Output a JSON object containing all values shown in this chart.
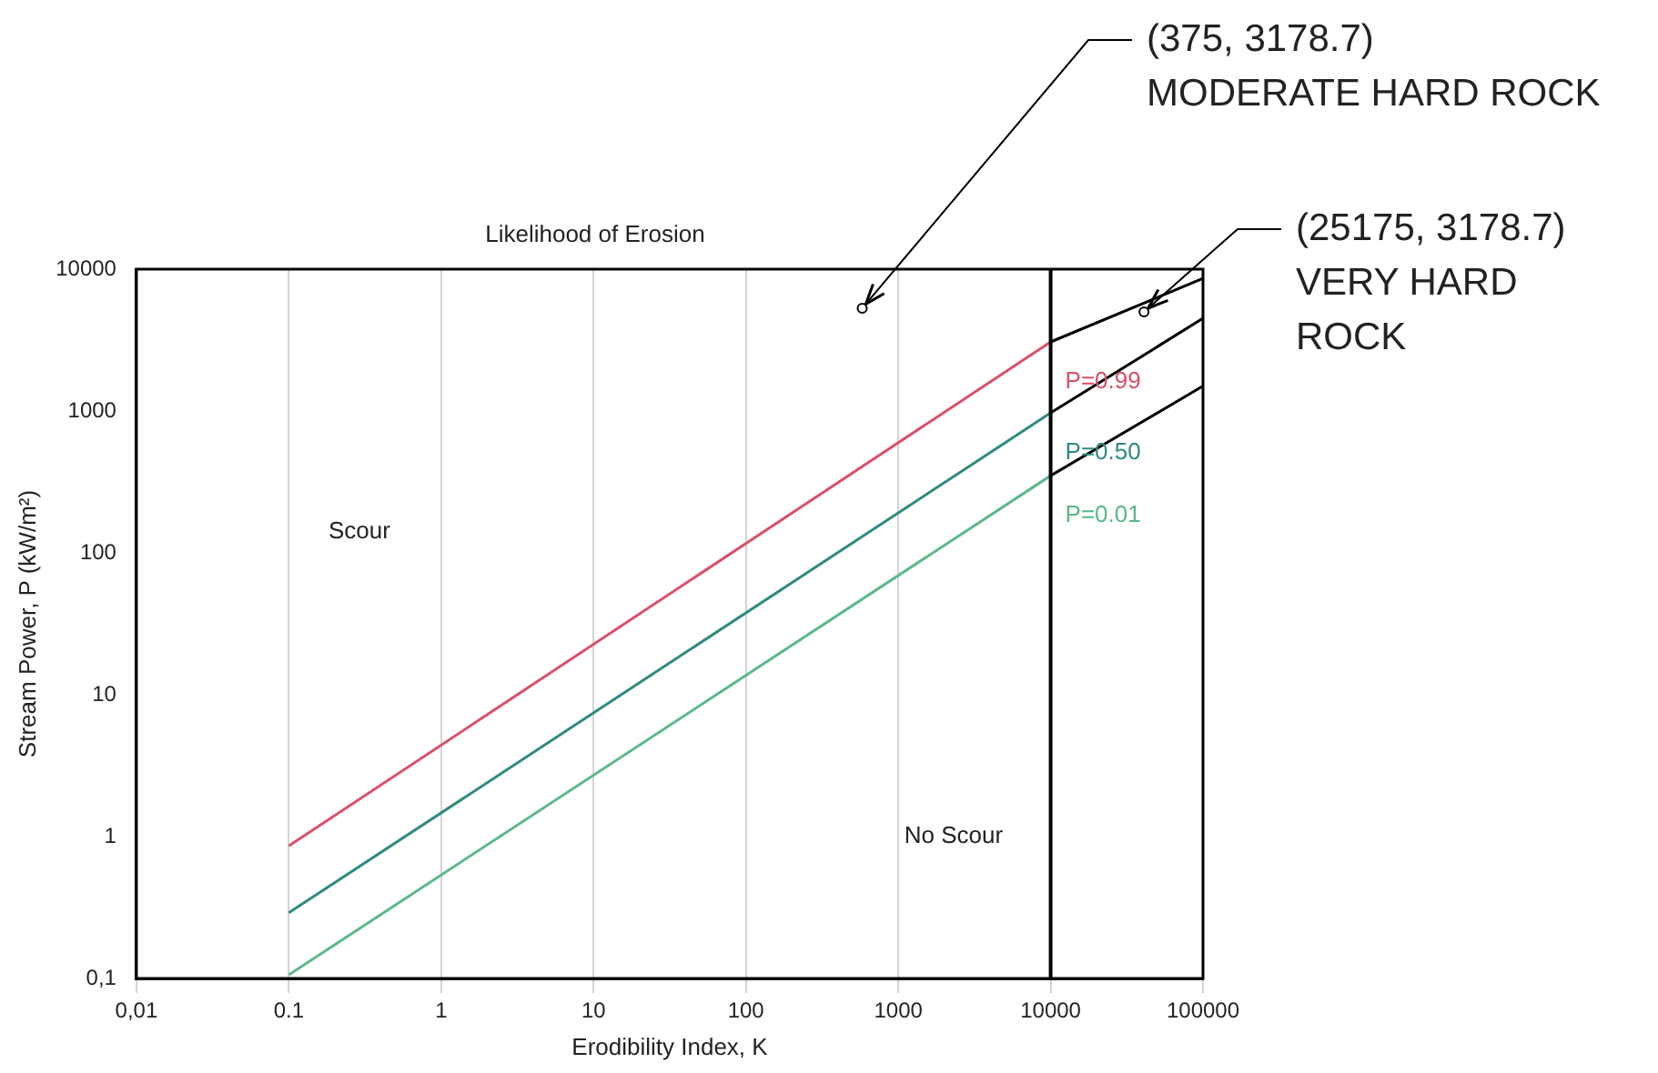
{
  "chart_data": {
    "type": "line",
    "title": "Likelihood of Erosion",
    "xlabel": "Erodibility Index, K",
    "ylabel": "Stream Power, P (kW/m²)",
    "log": "xy",
    "grid": "x",
    "legend": false,
    "marker": "none",
    "line_style": "solid",
    "xlim": [
      0.01,
      100000
    ],
    "xticks": [
      {
        "value": 0.01,
        "label": "0,01"
      },
      0.1,
      1,
      10,
      100,
      1000,
      10000,
      100000
    ],
    "ylim": [
      0.1,
      10000
    ],
    "yticks": [
      {
        "value": 0.1,
        "label": "0,1"
      },
      1,
      10,
      100,
      1000,
      10000
    ],
    "series": [
      {
        "name": "P=0.99",
        "color": "#d9506a",
        "x": [
          0.1,
          10000
        ],
        "values": [
          0.86,
          3070
        ]
      },
      {
        "name": "P=0.50",
        "color": "#2f8a80",
        "x": [
          0.1,
          10000
        ],
        "values": [
          0.29,
          970
        ]
      },
      {
        "name": "P=0.01",
        "color": "#5cb88a",
        "x": [
          0.1,
          10000
        ],
        "values": [
          0.106,
          350
        ]
      },
      {
        "color": "#000000",
        "x": [
          10000,
          100000
        ],
        "values": [
          3070,
          8600
        ]
      },
      {
        "color": "#000000",
        "x": [
          10000,
          100000
        ],
        "values": [
          970,
          4500
        ]
      },
      {
        "color": "#000000",
        "x": [
          10000,
          100000
        ],
        "values": [
          350,
          1500
        ]
      }
    ],
    "ref_lines": [
      {
        "axis": "x",
        "value": 10000,
        "color": "#000000"
      }
    ],
    "annotations": [
      "Scour",
      "No Scour",
      {
        "text": "(375, 3178.7)\nMODERATE HARD ROCK",
        "x": 580,
        "y": 5300
      },
      {
        "text": "(25175, 3178.7)\nVERY HARD\nROCK",
        "x": 41000,
        "y": 5000
      }
    ]
  }
}
